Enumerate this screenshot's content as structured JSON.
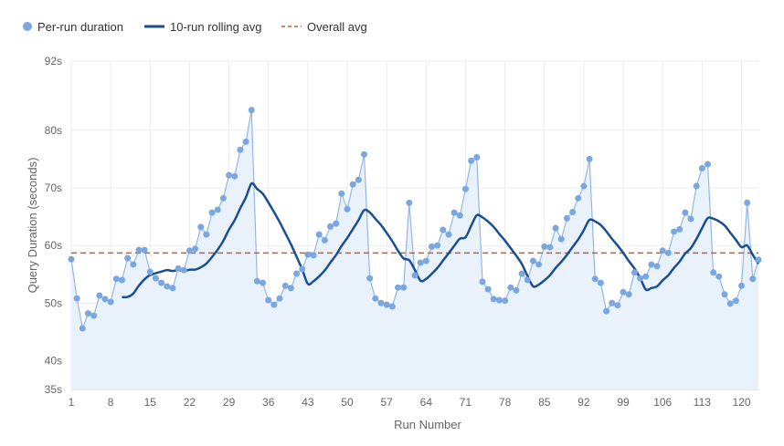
{
  "chart_data": {
    "type": "line",
    "xlabel": "Run Number",
    "ylabel": "Query Duration (seconds)",
    "ylim": [
      35,
      92
    ],
    "xlim": [
      1,
      123
    ],
    "yticks": [
      35,
      40,
      50,
      60,
      70,
      80,
      92
    ],
    "ytick_suffix": "s",
    "xticks": [
      1,
      8,
      15,
      22,
      29,
      36,
      43,
      50,
      57,
      64,
      71,
      78,
      85,
      92,
      99,
      106,
      113,
      120
    ],
    "grid": true,
    "legend_position": "top-left",
    "legend": [
      "Per-run duration",
      "10-run rolling avg",
      "Overall avg"
    ],
    "colors": {
      "points": "#7aa7e0",
      "rolling": "#1b4f93",
      "overall": "#c0603a",
      "fill": "#e9f1fb"
    },
    "rolling_window": 10,
    "overall_avg": 58.7,
    "series": [
      {
        "name": "Per-run duration",
        "values": [
          57.6,
          50.8,
          45.6,
          48.2,
          47.8,
          51.3,
          50.7,
          50.2,
          54.2,
          54.0,
          57.8,
          56.7,
          59.2,
          59.2,
          55.4,
          54.3,
          53.5,
          52.9,
          52.6,
          56.0,
          55.7,
          59.1,
          59.4,
          63.2,
          61.9,
          65.7,
          66.2,
          68.2,
          72.2,
          72.0,
          76.6,
          78.0,
          83.5,
          53.8,
          53.5,
          50.5,
          49.7,
          50.8,
          53.0,
          52.6,
          55.1,
          55.9,
          58.4,
          58.3,
          61.9,
          60.9,
          63.3,
          63.8,
          69.0,
          66.3,
          70.6,
          71.4,
          75.8,
          54.3,
          50.8,
          50.0,
          49.7,
          49.4,
          52.7,
          52.7,
          67.4,
          54.8,
          57.0,
          57.3,
          59.8,
          60.0,
          62.7,
          61.9,
          65.7,
          65.2,
          69.8,
          74.7,
          75.3,
          53.7,
          52.4,
          50.7,
          50.5,
          50.4,
          52.7,
          52.2,
          55.1,
          54.0,
          57.3,
          56.7,
          59.8,
          59.7,
          63.0,
          61.1,
          64.7,
          65.8,
          68.2,
          70.3,
          75.0,
          54.2,
          53.5,
          48.6,
          50.0,
          49.6,
          51.9,
          51.5,
          55.3,
          54.3,
          54.6,
          56.7,
          56.4,
          59.1,
          58.7,
          62.4,
          62.8,
          65.7,
          64.6,
          70.3,
          73.4,
          74.1,
          55.3,
          54.6,
          51.5,
          49.9,
          50.4,
          53.0,
          67.4,
          54.2,
          57.5
        ]
      },
      {
        "name": "10-run rolling avg"
      },
      {
        "name": "Overall avg"
      }
    ]
  }
}
